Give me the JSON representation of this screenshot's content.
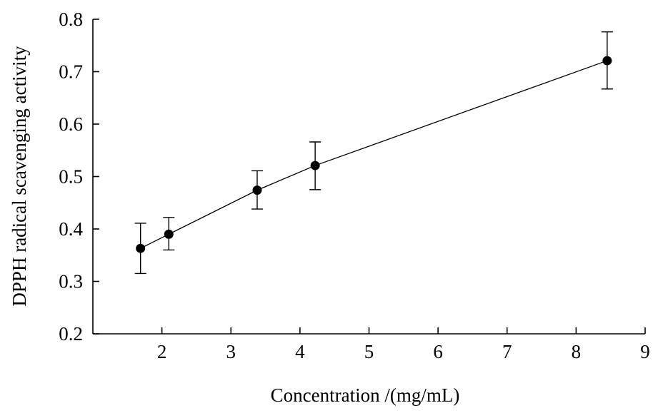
{
  "chart_data": {
    "type": "line",
    "title": "",
    "xlabel": "Concentration /(mg/mL)",
    "ylabel": "DPPH radical scavenging activity",
    "xlim": [
      1,
      9
    ],
    "ylim": [
      0.2,
      0.8
    ],
    "xticks": [
      2,
      3,
      4,
      5,
      6,
      7,
      8,
      9
    ],
    "yticks": [
      0.2,
      0.3,
      0.4,
      0.5,
      0.6,
      0.7,
      0.8
    ],
    "ytick_labels": [
      "0.2",
      "0.3",
      "0.4",
      "0.5",
      "0.6",
      "0.7",
      "0.8"
    ],
    "xtick_labels": [
      "2",
      "3",
      "4",
      "5",
      "6",
      "7",
      "8",
      "9"
    ],
    "grid": false,
    "legend": "none",
    "series": [
      {
        "x": [
          1.69,
          2.1,
          3.38,
          4.22,
          8.45
        ],
        "y": [
          0.363,
          0.39,
          0.474,
          0.521,
          0.721
        ],
        "yerr_upper": [
          0.411,
          0.422,
          0.511,
          0.566,
          0.776
        ],
        "yerr_lower": [
          0.315,
          0.36,
          0.438,
          0.475,
          0.667
        ],
        "color": "#000000",
        "marker": "circle"
      }
    ]
  }
}
